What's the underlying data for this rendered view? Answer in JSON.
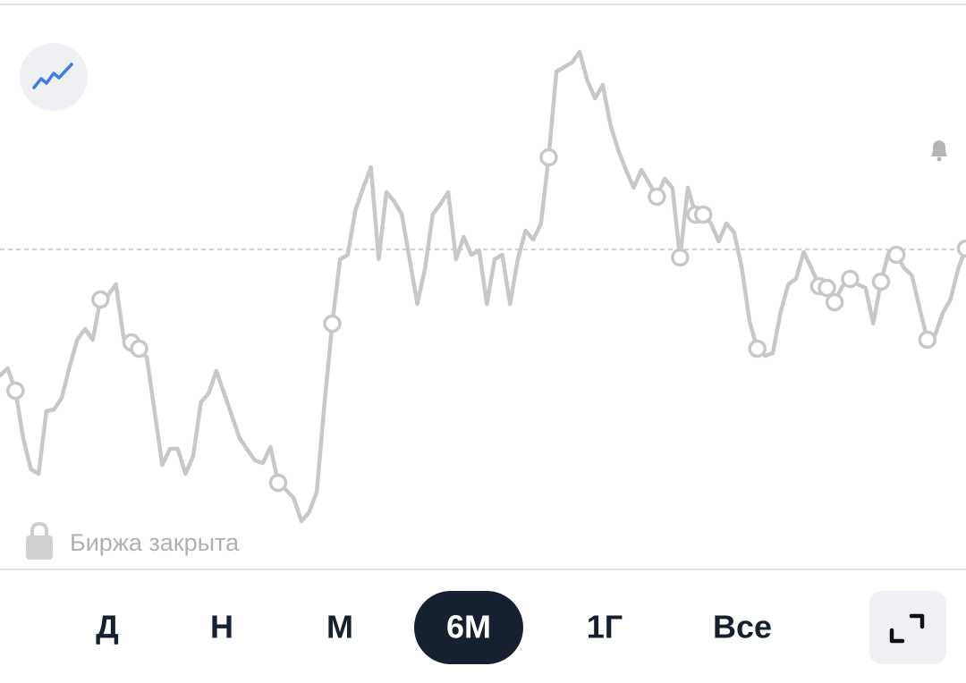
{
  "chart_data": {
    "type": "line",
    "series": [
      {
        "color": "#c8c8c8",
        "values": [
          220,
          228,
          203,
          150,
          115,
          110,
          180,
          182,
          195,
          230,
          260,
          272,
          260,
          305,
          310,
          322,
          262,
          257,
          250,
          240,
          180,
          120,
          138,
          138,
          110,
          130,
          190,
          200,
          225,
          200,
          175,
          150,
          137,
          125,
          122,
          140,
          100,
          92,
          83,
          57,
          67,
          90,
          190,
          278,
          350,
          355,
          405,
          430,
          453,
          350,
          425,
          415,
          400,
          350,
          300,
          340,
          400,
          412,
          425,
          350,
          375,
          355,
          360,
          300,
          350,
          355,
          300,
          350,
          382,
          372,
          390,
          464,
          560,
          565,
          570,
          582,
          550,
          530,
          545,
          500,
          472,
          450,
          430,
          450,
          435,
          420,
          440,
          430,
          352,
          430,
          400,
          400,
          390,
          370,
          390,
          380,
          340,
          280,
          250,
          242,
          245,
          290,
          322,
          328,
          358,
          340,
          320,
          318,
          302,
          320,
          328,
          322,
          318,
          278,
          325,
          358,
          355,
          340,
          332,
          295,
          260,
          265,
          290,
          305,
          340,
          362
        ]
      },
      {
        "color": "#c8c8c8",
        "values": [
          null,
          null,
          203,
          null,
          null,
          null,
          null,
          null,
          null,
          null,
          null,
          null,
          null,
          305,
          null,
          null,
          null,
          257,
          250,
          null,
          null,
          null,
          null,
          null,
          null,
          null,
          null,
          null,
          null,
          null,
          null,
          null,
          null,
          null,
          null,
          null,
          100,
          null,
          null,
          null,
          null,
          null,
          null,
          278,
          null,
          null,
          null,
          null,
          null,
          null,
          null,
          null,
          null,
          null,
          null,
          null,
          null,
          null,
          null,
          null,
          null,
          null,
          null,
          null,
          null,
          null,
          null,
          null,
          null,
          null,
          null,
          464,
          null,
          null,
          null,
          null,
          null,
          null,
          null,
          null,
          null,
          null,
          null,
          null,
          null,
          420,
          null,
          null,
          352,
          null,
          400,
          400,
          null,
          null,
          null,
          null,
          null,
          null,
          250,
          null,
          null,
          null,
          null,
          null,
          null,
          null,
          320,
          318,
          302,
          null,
          328,
          null,
          null,
          null,
          325,
          null,
          355,
          null,
          null,
          null,
          260,
          null,
          null,
          null,
          null,
          362
        ]
      }
    ],
    "reference_line": 361,
    "ylim": [
      5,
      635
    ]
  },
  "status": "Биржа закрыта",
  "periods": [
    "Д",
    "Н",
    "М",
    "6М",
    "1Г",
    "Все"
  ],
  "selected_period": "6М"
}
